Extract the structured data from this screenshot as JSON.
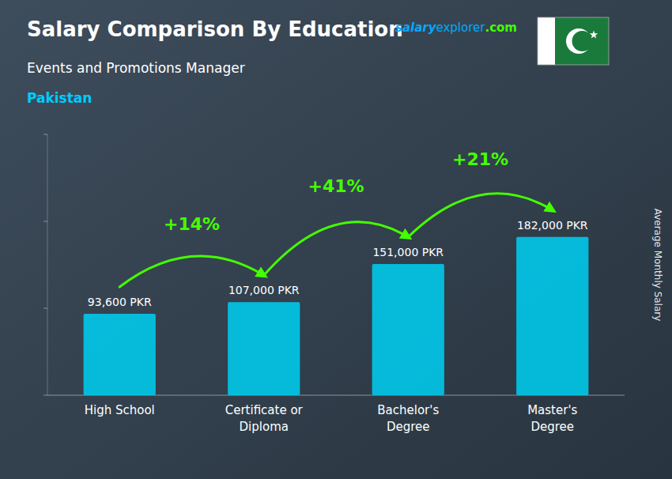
{
  "chart_data": {
    "type": "bar",
    "title": "Salary Comparison By Education",
    "subtitle": "Events and Promotions Manager",
    "y_label": "Average Monthly Salary",
    "categories": [
      "High School",
      "Certificate or\nDiploma",
      "Bachelor's\nDegree",
      "Master's\nDegree"
    ],
    "values": [
      93600,
      107000,
      151000,
      182000
    ],
    "value_labels": [
      "93,600 PKR",
      "107,000 PKR",
      "151,000 PKR",
      "182,000 PKR"
    ],
    "data_labels": true,
    "color": "#00ccee",
    "ylim": [
      0,
      300000
    ],
    "yticks": [
      0,
      100000,
      200000,
      300000
    ],
    "tick_labels": false,
    "grid": false,
    "changes": [
      {
        "value": 14,
        "label": "+14%"
      },
      {
        "value": 41,
        "label": "+41%"
      },
      {
        "value": 21,
        "label": "+21%"
      }
    ],
    "change_color": "#44ff00",
    "annotations": [
      {
        "text": "Pakistan",
        "color": "#00ccff"
      },
      {
        "text": "salary",
        "color": "#00aaff"
      },
      {
        "text": "explorer",
        "color": "#00aaff"
      },
      {
        "text": ".com",
        "color": "#44ff00"
      }
    ]
  }
}
